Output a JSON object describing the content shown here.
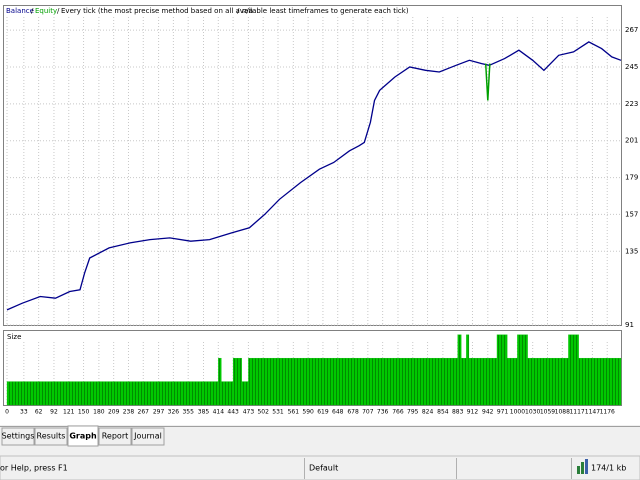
{
  "chart_data": {
    "type": "line",
    "model": "Every tick (the most precise method based on all available least timeframes to generate each tick)",
    "spread": "n/a",
    "xlim": [
      0,
      1203
    ],
    "xticks": [
      0,
      33,
      62,
      92,
      121,
      150,
      180,
      209,
      238,
      267,
      297,
      326,
      355,
      385,
      414,
      443,
      473,
      502,
      531,
      561,
      590,
      619,
      648,
      678,
      707,
      736,
      766,
      795,
      824,
      854,
      883,
      912,
      942,
      971,
      1000,
      1030,
      1059,
      1088,
      1117,
      1147,
      1176
    ],
    "ylim": [
      91,
      282
    ],
    "yticks": [
      267,
      245,
      223,
      201,
      179,
      157,
      135,
      91
    ],
    "grid": true,
    "series": [
      {
        "name": "Balance",
        "color": "#00008b",
        "x": [
          0,
          30,
          65,
          95,
          123,
          143,
          152,
          162,
          200,
          241,
          280,
          319,
          360,
          397,
          440,
          475,
          505,
          534,
          575,
          612,
          640,
          671,
          690,
          700,
          712,
          720,
          730,
          760,
          789,
          820,
          847,
          880,
          906,
          930,
          945,
          975,
          1003,
          1030,
          1052,
          1081,
          1110,
          1140,
          1165,
          1185,
          1203
        ],
        "values": [
          100,
          104,
          108,
          107,
          111,
          112,
          122,
          131,
          137,
          140,
          142,
          143,
          141,
          142,
          146,
          149,
          157,
          166,
          176,
          184,
          188,
          195,
          198,
          200,
          212,
          225,
          231,
          239,
          245,
          243,
          242,
          246,
          249,
          247,
          246,
          250,
          255,
          249,
          243,
          252,
          254,
          260,
          256,
          251,
          249
        ]
      },
      {
        "name": "Equity",
        "color": "#00a000",
        "x": [
          938,
          942,
          946
        ],
        "values": [
          247,
          225,
          247
        ]
      }
    ],
    "size": {
      "name": "Size",
      "color": "#00c000",
      "ylim": [
        0,
        3.2
      ],
      "bins": [
        0,
        414,
        420,
        443,
        460,
        473,
        883,
        890,
        900,
        905,
        960,
        980,
        1000,
        1020,
        1100,
        1120,
        1203
      ],
      "values": [
        1,
        2,
        1,
        2,
        1,
        2,
        3,
        2,
        3,
        2,
        3,
        2,
        3,
        2,
        3,
        2
      ]
    }
  },
  "tabs": [
    "Settings",
    "Results",
    "Graph",
    "Report",
    "Journal"
  ],
  "status": {
    "help": "or Help, press F1",
    "profile": "Default",
    "traffic": "174/1 kb"
  }
}
